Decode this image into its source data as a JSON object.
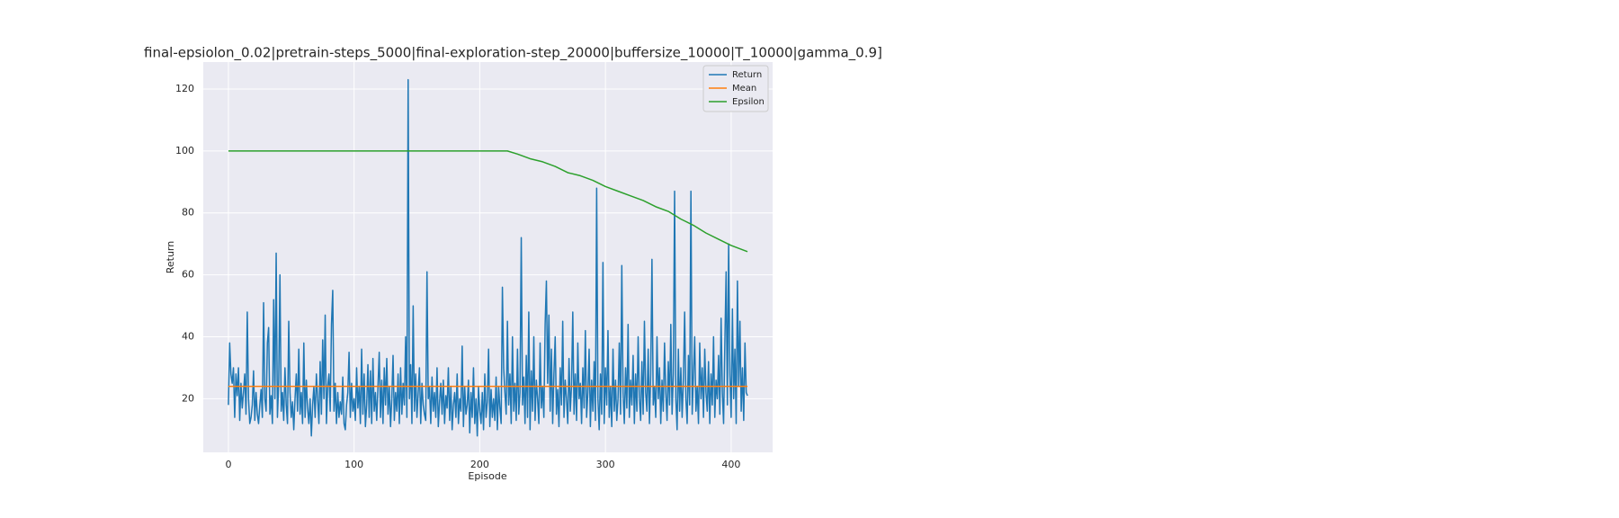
{
  "chart_data": {
    "type": "line",
    "title": "final-epsiolon_0.02|pretrain-steps_5000|final-exploration-step_20000|buffersize_10000|T_10000|gamma_0.9]",
    "xlabel": "Episode",
    "ylabel": "Return",
    "xlim": [
      -20,
      433
    ],
    "ylim": [
      2.7,
      128.7
    ],
    "xticks": [
      0,
      100,
      200,
      300,
      400
    ],
    "yticks": [
      20,
      40,
      60,
      80,
      100,
      120
    ],
    "grid": true,
    "legend": "upper right",
    "series": [
      {
        "name": "Return",
        "color": "#1f77b4",
        "x": [
          0,
          1,
          2,
          3,
          4,
          5,
          6,
          7,
          8,
          9,
          10,
          11,
          12,
          13,
          14,
          15,
          16,
          17,
          18,
          19,
          20,
          21,
          22,
          23,
          24,
          25,
          26,
          27,
          28,
          29,
          30,
          31,
          32,
          33,
          34,
          35,
          36,
          37,
          38,
          39,
          40,
          41,
          42,
          43,
          44,
          45,
          46,
          47,
          48,
          49,
          50,
          51,
          52,
          53,
          54,
          55,
          56,
          57,
          58,
          59,
          60,
          61,
          62,
          63,
          64,
          65,
          66,
          67,
          68,
          69,
          70,
          71,
          72,
          73,
          74,
          75,
          76,
          77,
          78,
          79,
          80,
          81,
          82,
          83,
          84,
          85,
          86,
          87,
          88,
          89,
          90,
          91,
          92,
          93,
          94,
          95,
          96,
          97,
          98,
          99,
          100,
          101,
          102,
          103,
          104,
          105,
          106,
          107,
          108,
          109,
          110,
          111,
          112,
          113,
          114,
          115,
          116,
          117,
          118,
          119,
          120,
          121,
          122,
          123,
          124,
          125,
          126,
          127,
          128,
          129,
          130,
          131,
          132,
          133,
          134,
          135,
          136,
          137,
          138,
          139,
          140,
          141,
          142,
          143,
          144,
          145,
          146,
          147,
          148,
          149,
          150,
          151,
          152,
          153,
          154,
          155,
          156,
          157,
          158,
          159,
          160,
          161,
          162,
          163,
          164,
          165,
          166,
          167,
          168,
          169,
          170,
          171,
          172,
          173,
          174,
          175,
          176,
          177,
          178,
          179,
          180,
          181,
          182,
          183,
          184,
          185,
          186,
          187,
          188,
          189,
          190,
          191,
          192,
          193,
          194,
          195,
          196,
          197,
          198,
          199,
          200,
          201,
          202,
          203,
          204,
          205,
          206,
          207,
          208,
          209,
          210,
          211,
          212,
          213,
          214,
          215,
          216,
          217,
          218,
          219,
          220,
          221,
          222,
          223,
          224,
          225,
          226,
          227,
          228,
          229,
          230,
          231,
          232,
          233,
          234,
          235,
          236,
          237,
          238,
          239,
          240,
          241,
          242,
          243,
          244,
          245,
          246,
          247,
          248,
          249,
          250,
          251,
          252,
          253,
          254,
          255,
          256,
          257,
          258,
          259,
          260,
          261,
          262,
          263,
          264,
          265,
          266,
          267,
          268,
          269,
          270,
          271,
          272,
          273,
          274,
          275,
          276,
          277,
          278,
          279,
          280,
          281,
          282,
          283,
          284,
          285,
          286,
          287,
          288,
          289,
          290,
          291,
          292,
          293,
          294,
          295,
          296,
          297,
          298,
          299,
          300,
          301,
          302,
          303,
          304,
          305,
          306,
          307,
          308,
          309,
          310,
          311,
          312,
          313,
          314,
          315,
          316,
          317,
          318,
          319,
          320,
          321,
          322,
          323,
          324,
          325,
          326,
          327,
          328,
          329,
          330,
          331,
          332,
          333,
          334,
          335,
          336,
          337,
          338,
          339,
          340,
          341,
          342,
          343,
          344,
          345,
          346,
          347,
          348,
          349,
          350,
          351,
          352,
          353,
          354,
          355,
          356,
          357,
          358,
          359,
          360,
          361,
          362,
          363,
          364,
          365,
          366,
          367,
          368,
          369,
          370,
          371,
          372,
          373,
          374,
          375,
          376,
          377,
          378,
          379,
          380,
          381,
          382,
          383,
          384,
          385,
          386,
          387,
          388,
          389,
          390,
          391,
          392,
          393,
          394,
          395,
          396,
          397,
          398,
          399,
          400,
          401,
          402,
          403,
          404,
          405,
          406,
          407,
          408,
          409,
          410,
          411,
          412,
          413
        ],
        "values": [
          18,
          38,
          28,
          25,
          30,
          14,
          28,
          21,
          30,
          13,
          25,
          17,
          22,
          28,
          15,
          48,
          20,
          12,
          14,
          18,
          29,
          13,
          22,
          15,
          12,
          18,
          23,
          14,
          51,
          20,
          16,
          38,
          43,
          15,
          21,
          12,
          52,
          20,
          67,
          14,
          25,
          60,
          16,
          22,
          13,
          30,
          18,
          12,
          45,
          22,
          14,
          19,
          10,
          20,
          28,
          16,
          36,
          15,
          22,
          12,
          38,
          14,
          26,
          17,
          12,
          20,
          8,
          18,
          24,
          14,
          28,
          20,
          12,
          32,
          15,
          39,
          20,
          47,
          12,
          24,
          28,
          16,
          44,
          55,
          16,
          25,
          12,
          22,
          14,
          19,
          15,
          27,
          12,
          10,
          18,
          22,
          35,
          14,
          25,
          16,
          20,
          13,
          30,
          17,
          24,
          12,
          36,
          15,
          28,
          11,
          18,
          31,
          14,
          29,
          12,
          33,
          16,
          22,
          13,
          24,
          35,
          14,
          26,
          12,
          30,
          18,
          33,
          15,
          24,
          11,
          20,
          34,
          13,
          22,
          16,
          28,
          12,
          30,
          15,
          25,
          18,
          40,
          14,
          123,
          20,
          31,
          12,
          50,
          16,
          28,
          14,
          22,
          30,
          12,
          25,
          18,
          15,
          13,
          61,
          20,
          24,
          12,
          27,
          16,
          22,
          14,
          30,
          11,
          19,
          25,
          15,
          26,
          12,
          21,
          17,
          30,
          13,
          24,
          10,
          18,
          22,
          14,
          28,
          12,
          20,
          16,
          37,
          11,
          24,
          15,
          18,
          26,
          9,
          22,
          14,
          30,
          12,
          20,
          8,
          24,
          16,
          12,
          22,
          10,
          28,
          14,
          19,
          36,
          11,
          23,
          14,
          20,
          13,
          27,
          10,
          24,
          17,
          12,
          56,
          30,
          22,
          15,
          45,
          18,
          28,
          12,
          40,
          16,
          25,
          13,
          36,
          15,
          22,
          72,
          18,
          27,
          12,
          34,
          14,
          48,
          10,
          29,
          16,
          40,
          13,
          26,
          20,
          12,
          38,
          17,
          24,
          14,
          44,
          58,
          25,
          47,
          16,
          36,
          12,
          28,
          40,
          15,
          23,
          11,
          30,
          18,
          45,
          14,
          26,
          20,
          12,
          33,
          16,
          24,
          48,
          15,
          28,
          13,
          38,
          20,
          25,
          12,
          30,
          17,
          42,
          14,
          22,
          36,
          11,
          26,
          16,
          32,
          13,
          88,
          20,
          10,
          28,
          15,
          64,
          12,
          30,
          18,
          42,
          14,
          24,
          11,
          36,
          16,
          26,
          13,
          20,
          38,
          15,
          63,
          22,
          12,
          30,
          17,
          44,
          14,
          26,
          18,
          34,
          12,
          28,
          16,
          40,
          20,
          13,
          32,
          15,
          45,
          22,
          16,
          36,
          12,
          28,
          65,
          18,
          24,
          14,
          40,
          20,
          30,
          12,
          26,
          16,
          38,
          22,
          13,
          32,
          18,
          44,
          15,
          28,
          87,
          20,
          10,
          36,
          16,
          30,
          14,
          26,
          48,
          20,
          12,
          34,
          18,
          87,
          15,
          28,
          40,
          16,
          24,
          12,
          38,
          20,
          30,
          14,
          36,
          22,
          16,
          32,
          12,
          28,
          18,
          40,
          14,
          26,
          20,
          34,
          15,
          46,
          22,
          12,
          38,
          61,
          18,
          70,
          28,
          14,
          49,
          20,
          36,
          12,
          58,
          24,
          45,
          16,
          30,
          13,
          38,
          22,
          21
        ]
      },
      {
        "name": "Mean",
        "color": "#ff7f0e",
        "x": [
          0,
          413
        ],
        "values": [
          24,
          24
        ]
      },
      {
        "name": "Epsilon",
        "color": "#2ca02c",
        "x": [
          0,
          222,
          230,
          240,
          250,
          260,
          270,
          280,
          290,
          300,
          310,
          320,
          330,
          340,
          350,
          360,
          370,
          380,
          390,
          400,
          413
        ],
        "values": [
          100,
          100,
          99,
          97.5,
          96.5,
          95,
          93,
          92,
          90.5,
          88.5,
          87,
          85.5,
          84,
          82,
          80.5,
          78,
          76,
          73.5,
          71.5,
          69.5,
          67.5
        ]
      }
    ]
  }
}
